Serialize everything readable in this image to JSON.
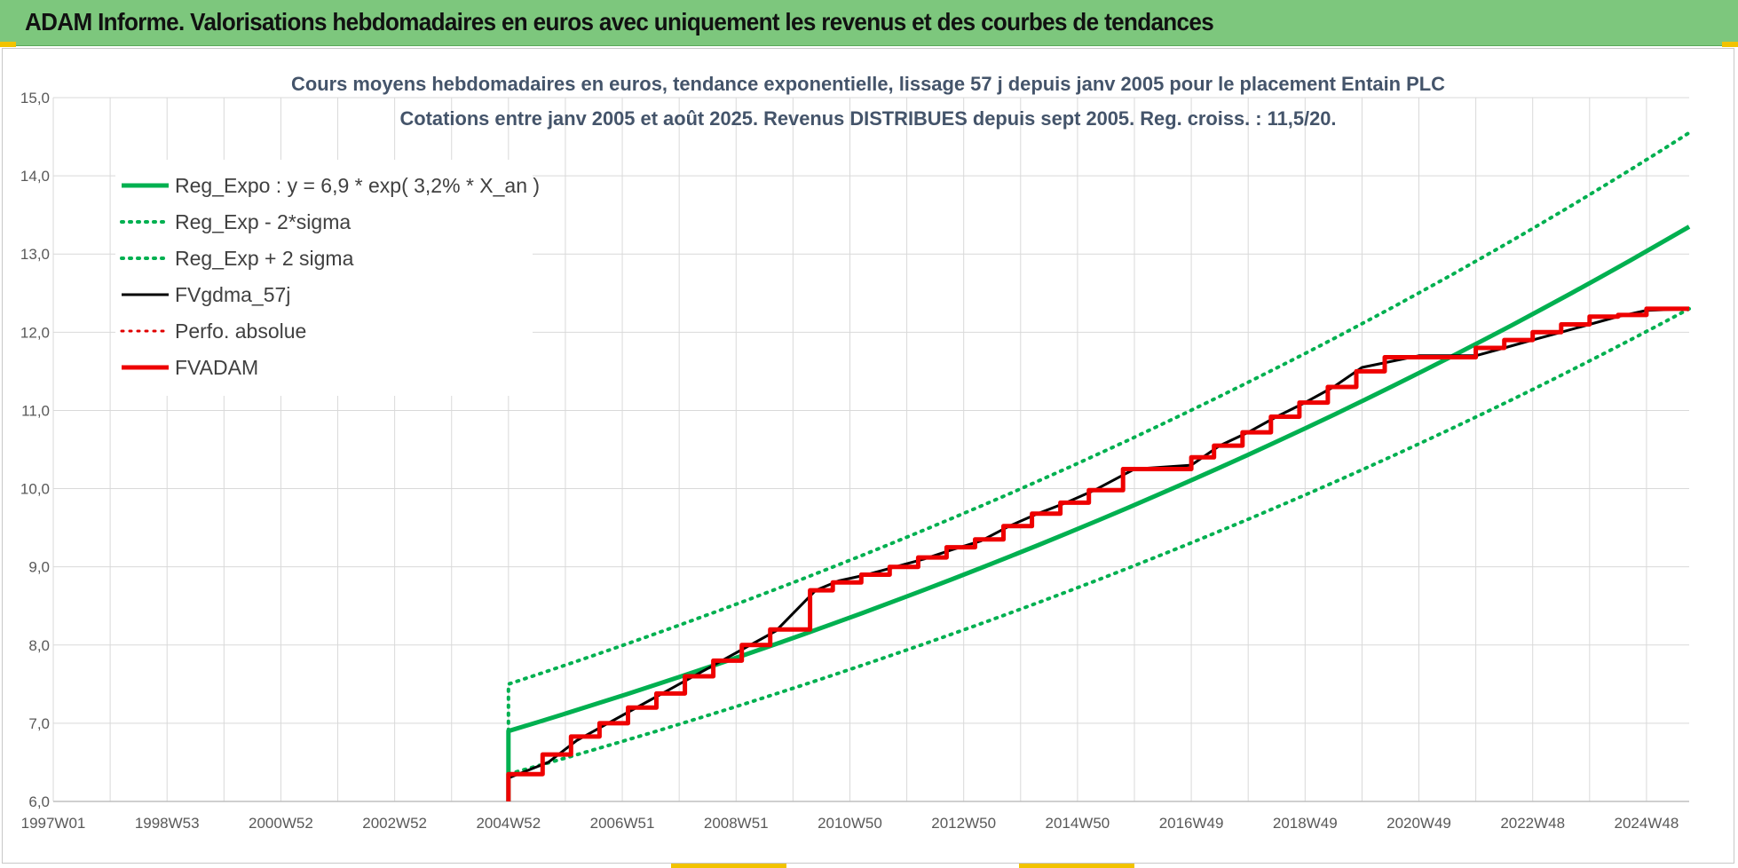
{
  "header": {
    "title": "ADAM Informe. Valorisations hebdomadaires en euros avec uniquement les revenus et des courbes de tendances"
  },
  "chart_data": {
    "type": "line",
    "title_line1": "Cours moyens hebdomadaires en euros, tendance exponentielle, lissage 57 j depuis janv 2005 pour le placement Entain PLC",
    "title_line2": "Cotations entre janv 2005 et août 2025.  Revenus DISTRIBUES depuis sept 2005.  Reg. croiss. : 11,5/20.",
    "x_ticks": [
      {
        "t": 1997.0,
        "label": "1997W01"
      },
      {
        "t": 1999.0,
        "label": "1998W53"
      },
      {
        "t": 2001.0,
        "label": "2000W52"
      },
      {
        "t": 2003.0,
        "label": "2002W52"
      },
      {
        "t": 2005.0,
        "label": "2004W52"
      },
      {
        "t": 2007.0,
        "label": "2006W51"
      },
      {
        "t": 2009.0,
        "label": "2008W51"
      },
      {
        "t": 2011.0,
        "label": "2010W50"
      },
      {
        "t": 2013.0,
        "label": "2012W50"
      },
      {
        "t": 2015.0,
        "label": "2014W50"
      },
      {
        "t": 2017.0,
        "label": "2016W49"
      },
      {
        "t": 2019.0,
        "label": "2018W49"
      },
      {
        "t": 2021.0,
        "label": "2020W49"
      },
      {
        "t": 2023.0,
        "label": "2022W48"
      },
      {
        "t": 2025.0,
        "label": "2024W48"
      }
    ],
    "x_range": [
      1997.0,
      2025.75
    ],
    "y_range": [
      6.0,
      15.0
    ],
    "y_ticks": [
      "6,0",
      "7,0",
      "8,0",
      "9,0",
      "10,0",
      "11,0",
      "12,0",
      "13,0",
      "14,0",
      "15,0"
    ],
    "grid": true,
    "legend_position": "top-left",
    "series": [
      {
        "name": "Reg_Expo : y = 6,9 * exp( 3,2% *  X_an )",
        "color": "#00b050",
        "style": "solid",
        "width": 5,
        "x": [
          2005.0,
          2005.0,
          2025.75
        ],
        "y": [
          6.0,
          6.9,
          13.35
        ]
      },
      {
        "name": "Reg_Exp - 2*sigma",
        "color": "#00b050",
        "style": "dotted",
        "width": 4,
        "x": [
          2005.0,
          2025.75
        ],
        "y": [
          6.35,
          12.3
        ]
      },
      {
        "name": "Reg_Exp + 2 sigma",
        "color": "#00b050",
        "style": "dotted",
        "width": 4,
        "x": [
          2005.0,
          2005.0,
          2025.75
        ],
        "y": [
          6.9,
          7.5,
          14.55
        ]
      },
      {
        "name": "FVgdma_57j",
        "color": "#000000",
        "style": "solid",
        "width": 3,
        "x": [
          2005.0,
          2005.7,
          2006.2,
          2006.7,
          2007.2,
          2007.7,
          2008.2,
          2008.7,
          2009.2,
          2009.7,
          2010.4,
          2010.8,
          2011.3,
          2011.8,
          2012.3,
          2012.8,
          2013.3,
          2013.8,
          2014.3,
          2014.8,
          2015.3,
          2016.0,
          2017.0,
          2017.5,
          2018.0,
          2018.5,
          2019.0,
          2019.5,
          2020.0,
          2021.0,
          2022.0,
          2022.5,
          2023.0,
          2023.5,
          2024.0,
          2024.5,
          2025.0,
          2025.75
        ],
        "y": [
          6.3,
          6.5,
          6.78,
          6.98,
          7.18,
          7.38,
          7.58,
          7.78,
          7.98,
          8.18,
          8.7,
          8.82,
          8.9,
          9.0,
          9.1,
          9.22,
          9.33,
          9.52,
          9.68,
          9.82,
          9.98,
          10.25,
          10.3,
          10.55,
          10.72,
          10.92,
          11.1,
          11.3,
          11.55,
          11.7,
          11.7,
          11.8,
          11.9,
          12.0,
          12.1,
          12.2,
          12.28,
          12.3
        ]
      },
      {
        "name": "Perfo. absolue",
        "color": "#e00000",
        "style": "dotted",
        "width": 3,
        "x": [],
        "y": []
      },
      {
        "name": "FVADAM",
        "color": "#ee0000",
        "style": "step",
        "width": 5,
        "x": [
          2005.0,
          2005.0,
          2005.6,
          2006.1,
          2006.6,
          2007.1,
          2007.6,
          2008.1,
          2008.6,
          2009.1,
          2009.6,
          2010.3,
          2010.7,
          2011.2,
          2011.7,
          2012.2,
          2012.7,
          2013.2,
          2013.7,
          2014.2,
          2014.7,
          2015.2,
          2015.8,
          2017.0,
          2017.4,
          2017.9,
          2018.4,
          2018.9,
          2019.4,
          2019.9,
          2020.4,
          2022.0,
          2022.5,
          2023.0,
          2023.5,
          2024.0,
          2024.5,
          2025.0,
          2025.75
        ],
        "y": [
          6.0,
          6.35,
          6.6,
          6.83,
          7.0,
          7.2,
          7.38,
          7.6,
          7.8,
          8.0,
          8.2,
          8.7,
          8.8,
          8.9,
          9.0,
          9.12,
          9.25,
          9.35,
          9.52,
          9.68,
          9.82,
          9.98,
          10.25,
          10.4,
          10.55,
          10.72,
          10.92,
          11.1,
          11.3,
          11.5,
          11.68,
          11.8,
          11.9,
          12.0,
          12.1,
          12.2,
          12.22,
          12.3,
          12.3
        ]
      }
    ]
  }
}
